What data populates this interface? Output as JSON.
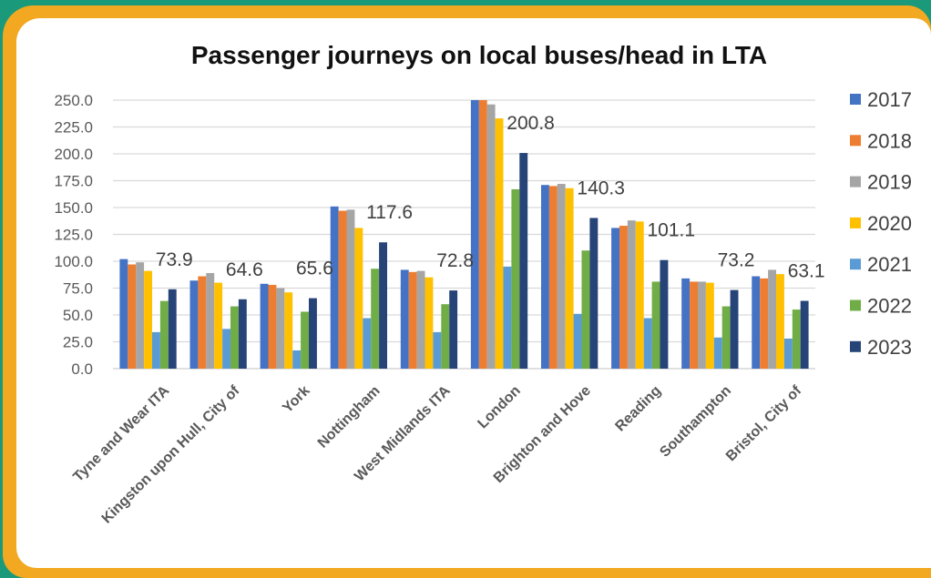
{
  "chart_data": {
    "type": "bar",
    "title": "Passenger journeys on local buses/head in LTA",
    "xlabel": "",
    "ylabel": "",
    "ylim": [
      0,
      250
    ],
    "yticks": [
      "0.0",
      "25.0",
      "50.0",
      "75.0",
      "100.0",
      "125.0",
      "150.0",
      "175.0",
      "200.0",
      "225.0",
      "250.0"
    ],
    "grid": true,
    "legend_position": "right",
    "categories": [
      "Tyne and Wear ITA",
      "Kingston upon Hull, City of",
      "York",
      "Nottingham",
      "West Midlands ITA",
      "London",
      "Brighton and Hove",
      "Reading",
      "Southampton",
      "Bristol, City of"
    ],
    "series": [
      {
        "name": "2017",
        "color": "#4472c4",
        "values": [
          102,
          82,
          79,
          151,
          92,
          250,
          171,
          131,
          84,
          86
        ]
      },
      {
        "name": "2018",
        "color": "#ed7d31",
        "values": [
          97,
          86,
          78,
          147,
          90,
          250,
          170,
          133,
          81,
          84
        ]
      },
      {
        "name": "2019",
        "color": "#a5a5a5",
        "values": [
          99,
          89,
          75,
          148,
          91,
          246,
          172,
          138,
          81,
          92
        ]
      },
      {
        "name": "2020",
        "color": "#ffc000",
        "values": [
          91,
          80,
          71,
          131,
          85,
          233,
          168,
          137,
          80,
          88
        ]
      },
      {
        "name": "2021",
        "color": "#5b9bd5",
        "values": [
          34,
          37,
          17,
          47,
          34,
          95,
          51,
          47,
          29,
          28
        ]
      },
      {
        "name": "2022",
        "color": "#70ad47",
        "values": [
          63,
          58,
          53,
          93,
          60,
          167,
          110,
          81,
          58,
          55
        ]
      },
      {
        "name": "2023",
        "color": "#264478",
        "values": [
          73.9,
          64.6,
          65.6,
          117.6,
          72.8,
          200.8,
          140.3,
          101.1,
          73.2,
          63.1
        ]
      }
    ],
    "data_labels": [
      "73.9",
      "64.6",
      "65.6",
      "117.6",
      "72.8",
      "200.8",
      "140.3",
      "101.1",
      "73.2",
      "63.1"
    ]
  }
}
